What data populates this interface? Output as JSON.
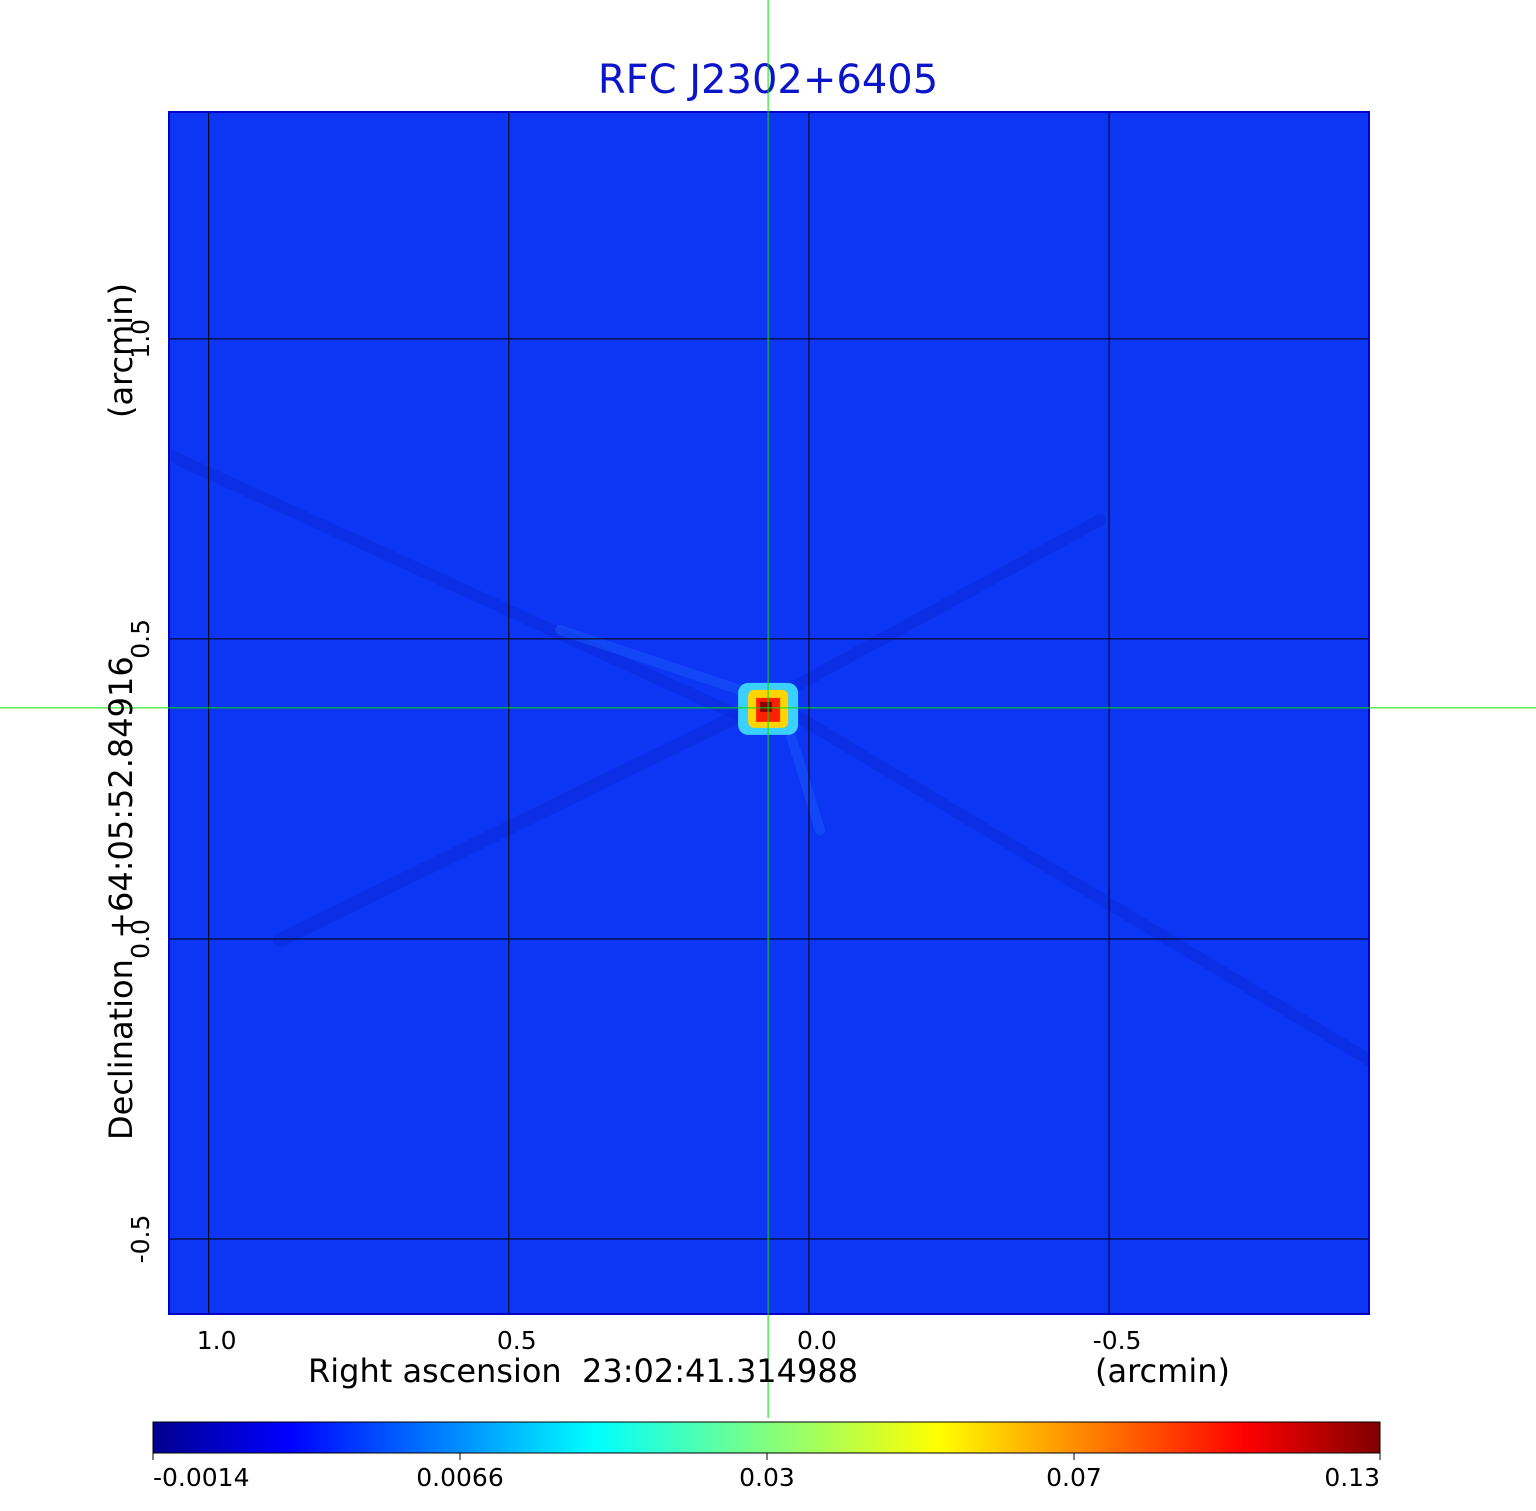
{
  "chart_data": {
    "type": "heatmap",
    "title": "RFC J2302+6405",
    "xlabel": "Right ascension  23:02:41.314988",
    "xunit": "(arcmin)",
    "ylabel": "Declination  +64:05:52.84916",
    "yunit": "(arcmin)",
    "xlim": [
      1.066,
      -0.933
    ],
    "ylim": [
      -0.625,
      1.378
    ],
    "x_ticks": [
      1.0,
      0.5,
      0.0,
      -0.5
    ],
    "x_tick_labels": [
      "1.0",
      "0.5",
      "0.0",
      "-0.5"
    ],
    "y_ticks": [
      -0.5,
      0.0,
      0.5,
      1.0
    ],
    "y_tick_labels": [
      "-0.5",
      "0.0",
      "0.5",
      "1.0"
    ],
    "grid": true,
    "crosshair": {
      "x": 0.068,
      "y": 0.385,
      "color": "#00e000"
    },
    "peak": {
      "x": 0.068,
      "y": 0.385,
      "value": 0.13
    },
    "colormap": "jet",
    "colorbar": {
      "orientation": "horizontal",
      "position": "bottom",
      "tick_labels": [
        "-0.0014",
        "0.0066",
        "0.03",
        "0.07",
        "0.13"
      ]
    },
    "background_color": "#0c35f4"
  }
}
